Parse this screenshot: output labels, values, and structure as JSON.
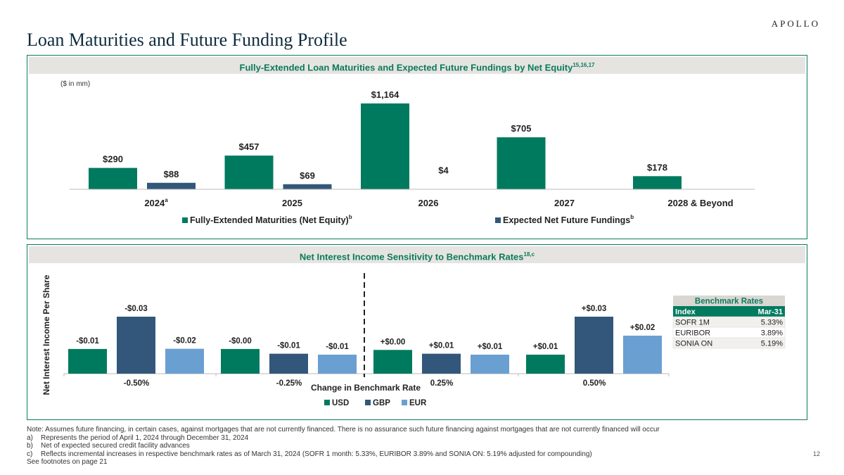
{
  "logo": "APOLLO",
  "title": "Loan Maturities and Future Funding Profile",
  "panel1": {
    "title": "Fully-Extended Loan Maturities and Expected Future Fundings by Net Equity",
    "title_sup": "15,16,17",
    "units_note": "($ in mm)"
  },
  "panel2": {
    "title": "Net Interest Income Sensitivity to Benchmark Rates",
    "title_sup": "18,c"
  },
  "chart_data": [
    {
      "type": "bar",
      "title": "Fully-Extended Loan Maturities and Expected Future Fundings by Net Equity",
      "ylabel": "($ in mm)",
      "categories": [
        "2024",
        "2025",
        "2026",
        "2027",
        "2028 & Beyond"
      ],
      "category_superscripts": [
        "a",
        "",
        "",
        "",
        ""
      ],
      "series": [
        {
          "name": "Fully-Extended Maturities (Net Equity)",
          "legend_sup": "b",
          "color": "#007a5e",
          "values": [
            290,
            457,
            1164,
            705,
            178
          ],
          "labels": [
            "$290",
            "$457",
            "$1,164",
            "$705",
            "$178"
          ]
        },
        {
          "name": "Expected Net Future Fundings",
          "legend_sup": "b",
          "color": "#33577a",
          "values": [
            88,
            69,
            4,
            null,
            null
          ],
          "labels": [
            "$88",
            "$69",
            "$4",
            "",
            ""
          ]
        }
      ],
      "ylim": [
        0,
        1200
      ]
    },
    {
      "type": "bar",
      "title": "Net Interest Income Sensitivity to Benchmark Rates",
      "xlabel": "Change in Benchmark Rate",
      "ylabel": "Net Interest Income Per Share",
      "categories": [
        "-0.50%",
        "-0.25%",
        "0.25%",
        "0.50%"
      ],
      "series": [
        {
          "name": "USD",
          "color": "#007a5e",
          "values": [
            -0.01,
            -0.0,
            0.0,
            0.01
          ],
          "labels": [
            "-$0.01",
            "-$0.00",
            "+$0.00",
            "+$0.01"
          ]
        },
        {
          "name": "GBP",
          "color": "#33577a",
          "values": [
            -0.03,
            -0.01,
            0.01,
            0.03
          ],
          "labels": [
            "-$0.03",
            "-$0.01",
            "+$0.01",
            "+$0.03"
          ]
        },
        {
          "name": "EUR",
          "color": "#6a9fd2",
          "values": [
            -0.02,
            -0.01,
            0.01,
            0.02
          ],
          "labels": [
            "-$0.02",
            "-$0.01",
            "+$0.01",
            "+$0.02"
          ]
        }
      ],
      "benchmark_table": {
        "title": "Benchmark Rates",
        "headers": [
          "Index",
          "Mar-31"
        ],
        "rows": [
          [
            "SOFR 1M",
            "5.33%"
          ],
          [
            "EURIBOR",
            "3.89%"
          ],
          [
            "SONIA ON",
            "5.19%"
          ]
        ]
      }
    }
  ],
  "notes": {
    "main": "Note: Assumes future financing, in certain cases, against mortgages that are not currently financed. There is no assurance such future financing against mortgages that are not currently financed will occur",
    "footnotes": [
      {
        "key": "a)",
        "text": "Represents the period of April 1, 2024 through December 31, 2024"
      },
      {
        "key": "b)",
        "text": "Net of expected secured credit facility advances"
      },
      {
        "key": "c)",
        "text": "Reflects incremental increases in respective benchmark rates as of March 31, 2024 (SOFR 1 month: 5.33%, EURIBOR 3.89% and SONIA ON: 5.19% adjusted for compounding)"
      }
    ],
    "see_also": "See footnotes on page 21"
  },
  "page_number": "12"
}
